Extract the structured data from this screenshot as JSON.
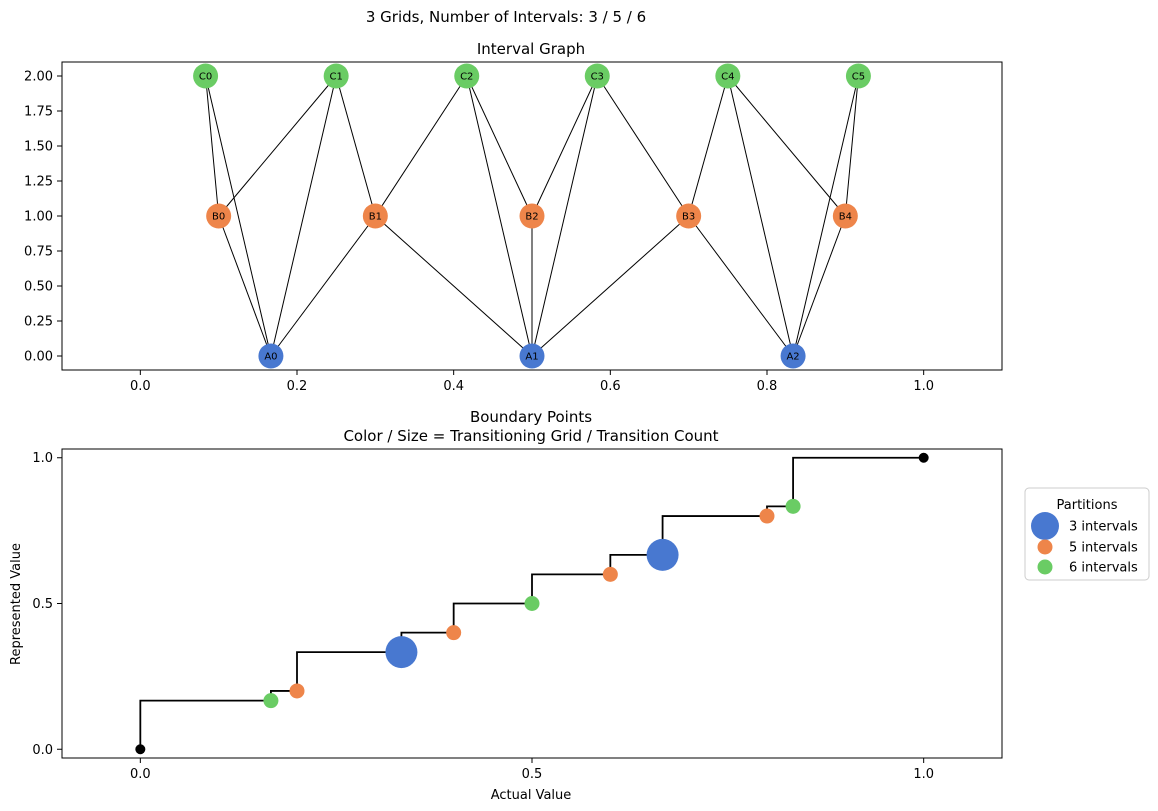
{
  "figure": {
    "suptitle": "3 Grids, Number of Intervals: 3 / 5 / 6"
  },
  "colors": {
    "grid3": "#4878d0",
    "grid5": "#ee854a",
    "grid6": "#6acc64",
    "black": "#000000"
  },
  "chart_data": [
    {
      "type": "scatter",
      "subtype": "network-graph",
      "title": "Interval Graph",
      "xlabel": "",
      "ylabel": "",
      "xlim": [
        -0.1,
        1.1
      ],
      "ylim": [
        -0.1,
        2.1
      ],
      "xticks": [
        "0.0",
        "0.2",
        "0.4",
        "0.6",
        "0.8",
        "1.0"
      ],
      "yticks": [
        "0.00",
        "0.25",
        "0.50",
        "0.75",
        "1.00",
        "1.25",
        "1.50",
        "1.75",
        "2.00"
      ],
      "xtick_values": [
        0.0,
        0.2,
        0.4,
        0.6,
        0.8,
        1.0
      ],
      "ytick_values": [
        0.0,
        0.25,
        0.5,
        0.75,
        1.0,
        1.25,
        1.5,
        1.75,
        2.0
      ],
      "nodes": [
        {
          "label": "A0",
          "x": 0.1667,
          "y": 0,
          "color": "#4878d0"
        },
        {
          "label": "A1",
          "x": 0.5,
          "y": 0,
          "color": "#4878d0"
        },
        {
          "label": "A2",
          "x": 0.8333,
          "y": 0,
          "color": "#4878d0"
        },
        {
          "label": "B0",
          "x": 0.1,
          "y": 1,
          "color": "#ee854a"
        },
        {
          "label": "B1",
          "x": 0.3,
          "y": 1,
          "color": "#ee854a"
        },
        {
          "label": "B2",
          "x": 0.5,
          "y": 1,
          "color": "#ee854a"
        },
        {
          "label": "B3",
          "x": 0.7,
          "y": 1,
          "color": "#ee854a"
        },
        {
          "label": "B4",
          "x": 0.9,
          "y": 1,
          "color": "#ee854a"
        },
        {
          "label": "C0",
          "x": 0.0833,
          "y": 2,
          "color": "#6acc64"
        },
        {
          "label": "C1",
          "x": 0.25,
          "y": 2,
          "color": "#6acc64"
        },
        {
          "label": "C2",
          "x": 0.4167,
          "y": 2,
          "color": "#6acc64"
        },
        {
          "label": "C3",
          "x": 0.5833,
          "y": 2,
          "color": "#6acc64"
        },
        {
          "label": "C4",
          "x": 0.75,
          "y": 2,
          "color": "#6acc64"
        },
        {
          "label": "C5",
          "x": 0.9167,
          "y": 2,
          "color": "#6acc64"
        }
      ],
      "edges": [
        [
          "A0",
          "B0"
        ],
        [
          "A0",
          "B1"
        ],
        [
          "A1",
          "B1"
        ],
        [
          "A1",
          "B2"
        ],
        [
          "A1",
          "B3"
        ],
        [
          "A2",
          "B3"
        ],
        [
          "A2",
          "B4"
        ],
        [
          "A0",
          "C0"
        ],
        [
          "A0",
          "C1"
        ],
        [
          "A1",
          "C2"
        ],
        [
          "A1",
          "C3"
        ],
        [
          "A2",
          "C4"
        ],
        [
          "A2",
          "C5"
        ],
        [
          "B0",
          "C0"
        ],
        [
          "B0",
          "C1"
        ],
        [
          "B1",
          "C1"
        ],
        [
          "B1",
          "C2"
        ],
        [
          "B2",
          "C2"
        ],
        [
          "B2",
          "C3"
        ],
        [
          "B3",
          "C3"
        ],
        [
          "B3",
          "C4"
        ],
        [
          "B4",
          "C4"
        ],
        [
          "B4",
          "C5"
        ]
      ]
    },
    {
      "type": "scatter",
      "subtype": "step-with-markers",
      "title": "Boundary Points",
      "subtitle": "Color / Size = Transitioning Grid / Transition Count",
      "xlabel": "Actual Value",
      "ylabel": "Represented Value",
      "xlim": [
        -0.1,
        1.1
      ],
      "ylim": [
        -0.03,
        1.03
      ],
      "xticks": [
        "0.0",
        "0.5",
        "1.0"
      ],
      "yticks": [
        "0.0",
        "0.5",
        "1.0"
      ],
      "xtick_values": [
        0.0,
        0.5,
        1.0
      ],
      "ytick_values": [
        0.0,
        0.5,
        1.0
      ],
      "step_x": [
        0,
        0.1667,
        0.2,
        0.3333,
        0.4,
        0.5,
        0.6,
        0.6667,
        0.8,
        0.8333,
        1.0
      ],
      "step_y": [
        0,
        0.1667,
        0.2,
        0.3333,
        0.4,
        0.5,
        0.6,
        0.6667,
        0.8,
        0.8333,
        1.0
      ],
      "endpoints": [
        {
          "x": 0,
          "y": 0
        },
        {
          "x": 1.0,
          "y": 1.0
        }
      ],
      "points": [
        {
          "x": 0.1667,
          "y": 0.1667,
          "series": "6 intervals"
        },
        {
          "x": 0.2,
          "y": 0.2,
          "series": "5 intervals"
        },
        {
          "x": 0.3333,
          "y": 0.3333,
          "series": "3 intervals"
        },
        {
          "x": 0.4,
          "y": 0.4,
          "series": "5 intervals"
        },
        {
          "x": 0.5,
          "y": 0.5,
          "series": "6 intervals"
        },
        {
          "x": 0.6,
          "y": 0.6,
          "series": "5 intervals"
        },
        {
          "x": 0.6667,
          "y": 0.6667,
          "series": "3 intervals"
        },
        {
          "x": 0.8,
          "y": 0.8,
          "series": "5 intervals"
        },
        {
          "x": 0.8333,
          "y": 0.8333,
          "series": "6 intervals"
        }
      ],
      "series": [
        {
          "name": "3 intervals",
          "color": "#4878d0"
        },
        {
          "name": "5 intervals",
          "color": "#ee854a"
        },
        {
          "name": "6 intervals",
          "color": "#6acc64"
        }
      ],
      "legend": {
        "title": "Partitions",
        "placement": "outside right"
      }
    }
  ]
}
